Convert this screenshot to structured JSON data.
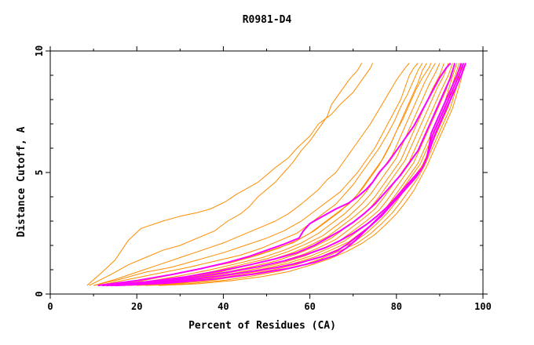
{
  "chart_data": {
    "type": "line",
    "title": "R0981-D4",
    "xlabel": "Percent of Residues (CA)",
    "ylabel": "Distance Cutoff, A",
    "xlim": [
      0,
      100
    ],
    "ylim": [
      0,
      10
    ],
    "x_ticks": [
      "0",
      "20",
      "40",
      "60",
      "80",
      "100"
    ],
    "y_ticks": [
      "0",
      "5",
      "10"
    ],
    "grid": false,
    "legend": "none",
    "colors": {
      "orange": "#ff8c00",
      "magenta": "#ff00ff",
      "axis": "#000000"
    },
    "series": [
      {
        "color": "#ff8c00",
        "x": [
          8.5,
          12,
          15,
          16.5,
          18,
          21,
          26,
          30,
          34,
          37,
          40.5,
          43,
          45,
          48,
          50,
          52,
          55,
          57,
          60,
          62,
          65,
          67,
          70,
          72,
          74,
          74.5
        ],
        "y": [
          0.35,
          0.9,
          1.4,
          1.8,
          2.2,
          2.7,
          3.0,
          3.2,
          3.35,
          3.5,
          3.8,
          4.1,
          4.3,
          4.6,
          4.9,
          5.2,
          5.6,
          6.0,
          6.5,
          7.0,
          7.4,
          7.8,
          8.3,
          8.8,
          9.3,
          9.5
        ]
      },
      {
        "color": "#ff8c00",
        "x": [
          9,
          14,
          18,
          22,
          26,
          30,
          34,
          38,
          41,
          44,
          46,
          48,
          50,
          52,
          54,
          56,
          58,
          60,
          62,
          64,
          65,
          67,
          69,
          71,
          72
        ],
        "y": [
          0.35,
          0.8,
          1.2,
          1.5,
          1.8,
          2.0,
          2.3,
          2.6,
          3.0,
          3.3,
          3.6,
          4.0,
          4.3,
          4.6,
          5.0,
          5.4,
          5.9,
          6.3,
          6.8,
          7.3,
          7.8,
          8.3,
          8.8,
          9.2,
          9.5
        ]
      },
      {
        "color": "#ff8c00",
        "x": [
          10,
          15,
          20,
          25,
          30,
          35,
          40,
          44,
          48,
          52,
          55,
          58,
          60,
          62,
          64,
          66,
          68,
          70,
          72,
          74,
          76,
          78,
          80,
          82,
          83
        ],
        "y": [
          0.35,
          0.6,
          0.9,
          1.2,
          1.5,
          1.8,
          2.1,
          2.4,
          2.7,
          3.0,
          3.3,
          3.7,
          4.0,
          4.3,
          4.7,
          5.0,
          5.5,
          6.0,
          6.5,
          7.0,
          7.6,
          8.2,
          8.8,
          9.3,
          9.5
        ]
      },
      {
        "color": "#ff8c00",
        "x": [
          10,
          16,
          22,
          28,
          34,
          40,
          45,
          50,
          54,
          58,
          61,
          64,
          67,
          69,
          71,
          73,
          75,
          76.5,
          78,
          79.5,
          81,
          82,
          83,
          84,
          85
        ],
        "y": [
          0.35,
          0.6,
          0.9,
          1.1,
          1.4,
          1.7,
          2.0,
          2.3,
          2.6,
          3.0,
          3.4,
          3.8,
          4.2,
          4.6,
          5.0,
          5.5,
          6.0,
          6.5,
          7.0,
          7.5,
          8.0,
          8.5,
          9.0,
          9.3,
          9.5
        ]
      },
      {
        "color": "#ff8c00",
        "x": [
          11,
          18,
          25,
          32,
          38,
          44,
          49,
          53,
          57,
          60,
          63,
          66,
          68,
          70,
          72,
          74,
          76,
          78,
          79.5,
          81,
          82.5,
          84,
          85,
          86
        ],
        "y": [
          0.35,
          0.6,
          0.85,
          1.1,
          1.35,
          1.6,
          1.9,
          2.2,
          2.5,
          2.9,
          3.3,
          3.7,
          4.1,
          4.5,
          5.0,
          5.5,
          6.0,
          6.6,
          7.1,
          7.7,
          8.2,
          8.8,
          9.2,
          9.5
        ]
      },
      {
        "color": "#ff8c00",
        "x": [
          12,
          20,
          28,
          35,
          42,
          48,
          53,
          57,
          61,
          64,
          67,
          70,
          72,
          74,
          76,
          77.5,
          79,
          80.5,
          82,
          83.5,
          85,
          86,
          87
        ],
        "y": [
          0.35,
          0.55,
          0.8,
          1.05,
          1.3,
          1.6,
          1.9,
          2.2,
          2.6,
          3.0,
          3.4,
          3.9,
          4.3,
          4.8,
          5.3,
          5.8,
          6.3,
          6.9,
          7.5,
          8.1,
          8.7,
          9.2,
          9.5
        ]
      },
      {
        "color": "#ff8c00",
        "x": [
          12,
          20,
          27,
          34,
          40,
          46,
          51,
          56,
          60,
          63,
          66,
          69,
          71,
          73,
          75,
          77,
          78.5,
          80,
          81.5,
          83,
          84.5,
          86,
          87.5,
          88
        ],
        "y": [
          0.35,
          0.5,
          0.75,
          1.0,
          1.25,
          1.5,
          1.8,
          2.1,
          2.5,
          2.9,
          3.3,
          3.7,
          4.1,
          4.6,
          5.1,
          5.6,
          6.1,
          6.7,
          7.2,
          7.8,
          8.4,
          8.9,
          9.3,
          9.5
        ]
      },
      {
        "color": "#ff8c00",
        "x": [
          13,
          22,
          30,
          37,
          43,
          49,
          54,
          58,
          62,
          65,
          68,
          71,
          73,
          75,
          77,
          79,
          80.5,
          82,
          83.5,
          85,
          86.5,
          88,
          89
        ],
        "y": [
          0.35,
          0.5,
          0.75,
          1.0,
          1.25,
          1.5,
          1.8,
          2.1,
          2.5,
          2.9,
          3.3,
          3.8,
          4.2,
          4.7,
          5.2,
          5.7,
          6.3,
          6.9,
          7.5,
          8.1,
          8.7,
          9.2,
          9.5
        ]
      },
      {
        "color": "#ff8c00",
        "x": [
          14,
          23,
          31,
          38,
          44,
          50,
          55,
          59,
          63,
          66,
          69,
          72,
          74,
          76,
          78,
          80,
          81.5,
          83,
          84.5,
          86,
          87.5,
          89,
          90
        ],
        "y": [
          0.35,
          0.5,
          0.7,
          0.95,
          1.2,
          1.45,
          1.75,
          2.05,
          2.4,
          2.8,
          3.2,
          3.7,
          4.1,
          4.6,
          5.1,
          5.6,
          6.2,
          6.8,
          7.4,
          8.0,
          8.6,
          9.1,
          9.5
        ]
      },
      {
        "color": "#ff8c00",
        "x": [
          14,
          24,
          32,
          39,
          45,
          51,
          56,
          60,
          64,
          67,
          70,
          73,
          75,
          77,
          79,
          81,
          82.5,
          84,
          85.5,
          87,
          88.5,
          90,
          91
        ],
        "y": [
          0.35,
          0.5,
          0.7,
          0.9,
          1.15,
          1.4,
          1.7,
          2.0,
          2.35,
          2.75,
          3.15,
          3.6,
          4.0,
          4.5,
          5.0,
          5.5,
          6.1,
          6.7,
          7.3,
          7.9,
          8.5,
          9.0,
          9.5
        ]
      },
      {
        "color": "#ff8c00",
        "x": [
          15,
          25,
          33,
          40,
          46,
          52,
          57,
          61,
          65,
          68,
          71,
          74,
          76,
          78,
          80,
          82,
          83.5,
          85,
          86.5,
          88,
          89.5,
          91,
          92
        ],
        "y": [
          0.35,
          0.48,
          0.68,
          0.88,
          1.1,
          1.35,
          1.65,
          1.95,
          2.3,
          2.7,
          3.1,
          3.55,
          4.0,
          4.5,
          5.0,
          5.5,
          6.1,
          6.7,
          7.3,
          7.9,
          8.5,
          9.0,
          9.5
        ]
      },
      {
        "color": "#ff8c00",
        "x": [
          16,
          26,
          34,
          41,
          47,
          53,
          58,
          62,
          66,
          69,
          72,
          75,
          77,
          79,
          81,
          83,
          84.5,
          86,
          87.5,
          89,
          90.5,
          92,
          93
        ],
        "y": [
          0.35,
          0.48,
          0.66,
          0.86,
          1.08,
          1.32,
          1.6,
          1.9,
          2.25,
          2.65,
          3.05,
          3.5,
          3.95,
          4.45,
          4.95,
          5.45,
          6.05,
          6.65,
          7.25,
          7.85,
          8.45,
          9.0,
          9.5
        ]
      },
      {
        "color": "#ff8c00",
        "x": [
          16,
          27,
          35,
          42,
          48,
          54,
          59,
          63,
          67,
          70,
          73,
          76,
          78,
          80,
          82,
          84,
          85.5,
          87,
          88.5,
          90,
          91.5,
          92.5,
          93.5
        ],
        "y": [
          0.35,
          0.46,
          0.64,
          0.84,
          1.05,
          1.3,
          1.58,
          1.88,
          2.2,
          2.6,
          3.0,
          3.45,
          3.9,
          4.4,
          4.9,
          5.4,
          6.0,
          6.6,
          7.2,
          7.8,
          8.4,
          9.0,
          9.5
        ]
      },
      {
        "color": "#ff8c00",
        "x": [
          17,
          28,
          36,
          43,
          49,
          55,
          60,
          64,
          68,
          71,
          74,
          77,
          79,
          81,
          83,
          85,
          86.5,
          88,
          89.5,
          91,
          92,
          93,
          94
        ],
        "y": [
          0.35,
          0.46,
          0.62,
          0.82,
          1.03,
          1.27,
          1.55,
          1.85,
          2.18,
          2.58,
          2.98,
          3.42,
          3.88,
          4.38,
          4.88,
          5.38,
          5.98,
          6.58,
          7.18,
          7.78,
          8.38,
          8.98,
          9.5
        ]
      },
      {
        "color": "#ff8c00",
        "x": [
          18,
          29,
          37,
          44,
          50,
          56,
          61,
          65,
          69,
          72,
          75,
          77.5,
          79.5,
          81.5,
          83.5,
          85.5,
          87,
          88.5,
          90,
          91.5,
          92.5,
          93.5,
          94.5
        ],
        "y": [
          0.35,
          0.45,
          0.6,
          0.8,
          1.0,
          1.25,
          1.52,
          1.82,
          2.15,
          2.55,
          2.95,
          3.4,
          3.85,
          4.35,
          4.85,
          5.35,
          5.95,
          6.55,
          7.15,
          7.75,
          8.35,
          8.95,
          9.5
        ]
      },
      {
        "color": "#ff8c00",
        "x": [
          20,
          30,
          38,
          45,
          51,
          57,
          62,
          66,
          70,
          73,
          75.5,
          78,
          80,
          82,
          84,
          86,
          87.5,
          89,
          90.5,
          92,
          93,
          94,
          95
        ],
        "y": [
          0.35,
          0.44,
          0.58,
          0.78,
          0.98,
          1.22,
          1.5,
          1.8,
          2.12,
          2.5,
          2.9,
          3.35,
          3.8,
          4.3,
          4.8,
          5.3,
          5.9,
          6.5,
          7.1,
          7.7,
          8.3,
          8.9,
          9.5
        ]
      },
      {
        "color": "#ff8c00",
        "x": [
          22,
          32,
          40,
          47,
          53,
          58.5,
          63,
          67,
          71,
          74,
          76.5,
          79,
          81,
          83,
          85,
          86.5,
          88,
          89.5,
          91,
          92.5,
          93.5,
          94.5,
          95
        ],
        "y": [
          0.35,
          0.43,
          0.56,
          0.75,
          0.95,
          1.2,
          1.48,
          1.78,
          2.1,
          2.48,
          2.88,
          3.33,
          3.78,
          4.28,
          4.78,
          5.28,
          5.88,
          6.48,
          7.08,
          7.68,
          8.28,
          8.88,
          9.5
        ]
      },
      {
        "color": "#ff8c00",
        "x": [
          25,
          34,
          42,
          49,
          55,
          60,
          64.5,
          68.5,
          72,
          75,
          77.5,
          80,
          82,
          84,
          85.5,
          87,
          88.5,
          90,
          91.5,
          93,
          94,
          95,
          95.5
        ],
        "y": [
          0.35,
          0.42,
          0.55,
          0.72,
          0.92,
          1.18,
          1.45,
          1.75,
          2.08,
          2.45,
          2.85,
          3.3,
          3.75,
          4.25,
          4.75,
          5.25,
          5.85,
          6.45,
          7.05,
          7.65,
          8.25,
          8.85,
          9.5
        ]
      },
      {
        "color": "#ff00ff",
        "x": [
          11,
          20,
          28,
          35,
          41,
          46,
          50,
          54,
          57.5,
          58.5,
          60,
          63,
          66,
          69,
          71,
          73,
          74.5,
          76,
          78,
          80,
          82,
          84,
          85.5,
          87,
          88.5,
          90,
          91.5,
          92.5
        ],
        "y": [
          0.35,
          0.55,
          0.8,
          1.05,
          1.3,
          1.55,
          1.8,
          2.05,
          2.3,
          2.6,
          2.9,
          3.2,
          3.5,
          3.75,
          4.0,
          4.3,
          4.6,
          5.0,
          5.4,
          5.9,
          6.4,
          6.9,
          7.4,
          7.9,
          8.4,
          8.9,
          9.3,
          9.5
        ]
      },
      {
        "color": "#ff00ff",
        "x": [
          12,
          22,
          31,
          39,
          46,
          52,
          57,
          61,
          64,
          67,
          70,
          72.5,
          75,
          77,
          79,
          81,
          83,
          85,
          86.5,
          88,
          89.5,
          91,
          92.5,
          93.5
        ],
        "y": [
          0.35,
          0.5,
          0.7,
          0.95,
          1.2,
          1.45,
          1.7,
          2.0,
          2.3,
          2.6,
          2.95,
          3.3,
          3.7,
          4.1,
          4.5,
          4.9,
          5.4,
          5.9,
          6.5,
          7.1,
          7.7,
          8.3,
          8.9,
          9.5
        ]
      },
      {
        "color": "#ff00ff",
        "x": [
          13,
          24,
          33,
          41,
          48,
          54,
          59,
          63.5,
          67,
          70,
          73,
          75.5,
          78,
          80,
          82,
          84,
          86,
          87,
          87.5,
          88,
          89.5,
          91,
          92.5,
          94,
          95
        ],
        "y": [
          0.35,
          0.48,
          0.68,
          0.9,
          1.12,
          1.36,
          1.62,
          1.9,
          2.2,
          2.5,
          2.85,
          3.2,
          3.6,
          4.0,
          4.4,
          4.8,
          5.2,
          5.6,
          6.0,
          6.6,
          7.2,
          7.8,
          8.4,
          9.0,
          9.5
        ]
      },
      {
        "color": "#ff00ff",
        "x": [
          14,
          25,
          35,
          44,
          52,
          58,
          63,
          66.5,
          69,
          71.5,
          74,
          76.5,
          78.5,
          80.5,
          82.5,
          84.5,
          86,
          87,
          87.5,
          88.5,
          90,
          91.5,
          93,
          94.5,
          95.5
        ],
        "y": [
          0.35,
          0.46,
          0.65,
          0.86,
          1.08,
          1.3,
          1.55,
          1.8,
          2.1,
          2.45,
          2.8,
          3.2,
          3.6,
          4.0,
          4.4,
          4.8,
          5.2,
          5.6,
          6.0,
          6.6,
          7.2,
          7.8,
          8.4,
          9.0,
          9.5
        ]
      },
      {
        "color": "#ff00ff",
        "x": [
          15,
          27,
          38,
          47,
          55,
          61,
          66,
          68.5,
          70.5,
          72.5,
          74.5,
          76.5,
          78.5,
          80.5,
          82.5,
          84.5,
          86,
          87,
          88,
          89,
          90.5,
          92,
          93.5,
          95,
          96
        ],
        "y": [
          0.35,
          0.45,
          0.62,
          0.82,
          1.05,
          1.3,
          1.6,
          1.9,
          2.2,
          2.55,
          2.9,
          3.25,
          3.6,
          4.0,
          4.4,
          4.8,
          5.2,
          5.6,
          6.1,
          6.6,
          7.2,
          7.8,
          8.4,
          9.0,
          9.5
        ]
      }
    ]
  }
}
